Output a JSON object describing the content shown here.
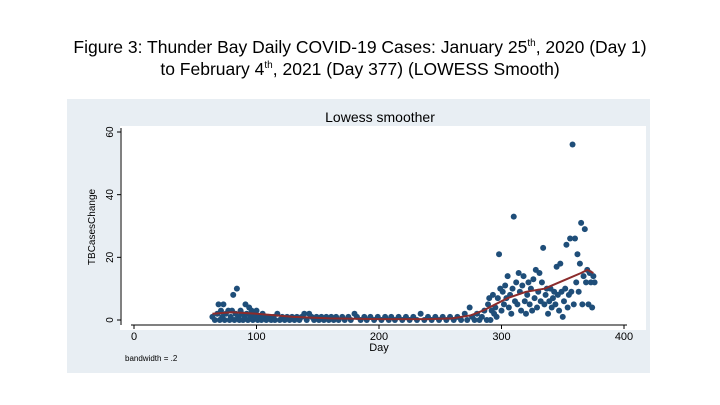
{
  "figure": {
    "line1_prefix": "Figure 3: Thunder Bay Daily COVID-19 Cases: January 25",
    "line1_sup": "th",
    "line1_suffix": ", 2020 (Day 1)",
    "line2_prefix": "to February 4",
    "line2_sup": "th",
    "line2_suffix": ", 2021 (Day 377) (LOWESS Smooth)"
  },
  "chart_data": {
    "type": "scatter",
    "title": "Lowess smoother",
    "xlabel": "Day",
    "ylabel": "TBCasesChange",
    "xlim": [
      0,
      400
    ],
    "ylim": [
      0,
      60
    ],
    "xticks": [
      0,
      100,
      200,
      300,
      400
    ],
    "yticks": [
      0,
      20,
      40,
      60
    ],
    "note": "bandwidth = .2",
    "series": [
      {
        "name": "TBCasesChange",
        "kind": "scatter",
        "color": "#1f4e79",
        "points": [
          [
            64,
            1
          ],
          [
            66,
            0
          ],
          [
            68,
            2
          ],
          [
            69,
            5
          ],
          [
            70,
            0
          ],
          [
            71,
            3
          ],
          [
            72,
            1
          ],
          [
            73,
            5
          ],
          [
            74,
            0
          ],
          [
            75,
            2
          ],
          [
            77,
            3
          ],
          [
            78,
            0
          ],
          [
            79,
            1
          ],
          [
            80,
            3
          ],
          [
            81,
            8
          ],
          [
            82,
            0
          ],
          [
            83,
            2
          ],
          [
            84,
            10
          ],
          [
            85,
            1
          ],
          [
            86,
            0
          ],
          [
            87,
            3
          ],
          [
            88,
            2
          ],
          [
            89,
            0
          ],
          [
            90,
            1
          ],
          [
            91,
            5
          ],
          [
            92,
            2
          ],
          [
            93,
            0
          ],
          [
            94,
            4
          ],
          [
            95,
            1
          ],
          [
            96,
            3
          ],
          [
            97,
            0
          ],
          [
            98,
            2
          ],
          [
            99,
            1
          ],
          [
            100,
            3
          ],
          [
            101,
            0
          ],
          [
            102,
            1
          ],
          [
            104,
            0
          ],
          [
            105,
            2
          ],
          [
            106,
            1
          ],
          [
            108,
            0
          ],
          [
            110,
            1
          ],
          [
            112,
            0
          ],
          [
            114,
            1
          ],
          [
            115,
            0
          ],
          [
            117,
            2
          ],
          [
            119,
            0
          ],
          [
            121,
            1
          ],
          [
            123,
            0
          ],
          [
            125,
            1
          ],
          [
            127,
            0
          ],
          [
            129,
            1
          ],
          [
            131,
            0
          ],
          [
            133,
            1
          ],
          [
            135,
            0
          ],
          [
            137,
            1
          ],
          [
            139,
            2
          ],
          [
            141,
            0
          ],
          [
            143,
            2
          ],
          [
            145,
            1
          ],
          [
            147,
            0
          ],
          [
            149,
            1
          ],
          [
            151,
            0
          ],
          [
            153,
            1
          ],
          [
            155,
            0
          ],
          [
            157,
            1
          ],
          [
            159,
            0
          ],
          [
            161,
            1
          ],
          [
            163,
            0
          ],
          [
            165,
            1
          ],
          [
            167,
            0
          ],
          [
            170,
            1
          ],
          [
            172,
            0
          ],
          [
            175,
            1
          ],
          [
            177,
            0
          ],
          [
            180,
            2
          ],
          [
            182,
            1
          ],
          [
            185,
            0
          ],
          [
            188,
            1
          ],
          [
            190,
            0
          ],
          [
            193,
            1
          ],
          [
            196,
            0
          ],
          [
            199,
            1
          ],
          [
            202,
            0
          ],
          [
            205,
            1
          ],
          [
            208,
            0
          ],
          [
            210,
            1
          ],
          [
            213,
            0
          ],
          [
            216,
            1
          ],
          [
            219,
            0
          ],
          [
            222,
            1
          ],
          [
            225,
            0
          ],
          [
            228,
            1
          ],
          [
            231,
            0
          ],
          [
            234,
            2
          ],
          [
            237,
            0
          ],
          [
            240,
            1
          ],
          [
            243,
            0
          ],
          [
            246,
            1
          ],
          [
            249,
            0
          ],
          [
            252,
            1
          ],
          [
            255,
            0
          ],
          [
            258,
            1
          ],
          [
            261,
            0
          ],
          [
            264,
            1
          ],
          [
            267,
            0
          ],
          [
            270,
            2
          ],
          [
            272,
            0
          ],
          [
            274,
            4
          ],
          [
            276,
            1
          ],
          [
            278,
            0
          ],
          [
            280,
            2
          ],
          [
            282,
            0
          ],
          [
            284,
            1
          ],
          [
            286,
            3
          ],
          [
            288,
            0
          ],
          [
            289,
            5
          ],
          [
            290,
            7
          ],
          [
            291,
            0
          ],
          [
            292,
            3
          ],
          [
            293,
            8
          ],
          [
            294,
            2
          ],
          [
            295,
            4
          ],
          [
            296,
            1
          ],
          [
            297,
            7
          ],
          [
            298,
            21
          ],
          [
            299,
            10
          ],
          [
            300,
            3
          ],
          [
            301,
            9
          ],
          [
            302,
            5
          ],
          [
            303,
            11
          ],
          [
            304,
            7
          ],
          [
            305,
            14
          ],
          [
            306,
            4
          ],
          [
            307,
            8
          ],
          [
            308,
            2
          ],
          [
            309,
            10
          ],
          [
            310,
            33
          ],
          [
            311,
            6
          ],
          [
            312,
            12
          ],
          [
            313,
            5
          ],
          [
            314,
            15
          ],
          [
            315,
            9
          ],
          [
            316,
            3
          ],
          [
            317,
            11
          ],
          [
            318,
            14
          ],
          [
            319,
            6
          ],
          [
            320,
            2
          ],
          [
            321,
            8
          ],
          [
            322,
            12
          ],
          [
            323,
            5
          ],
          [
            324,
            10
          ],
          [
            325,
            3
          ],
          [
            326,
            13
          ],
          [
            327,
            7
          ],
          [
            328,
            16
          ],
          [
            329,
            4
          ],
          [
            330,
            9
          ],
          [
            331,
            15
          ],
          [
            332,
            6
          ],
          [
            333,
            12
          ],
          [
            334,
            23
          ],
          [
            335,
            5
          ],
          [
            336,
            8
          ],
          [
            337,
            10
          ],
          [
            338,
            2
          ],
          [
            339,
            6
          ],
          [
            340,
            10
          ],
          [
            341,
            4
          ],
          [
            342,
            7
          ],
          [
            343,
            9
          ],
          [
            344,
            5
          ],
          [
            345,
            17
          ],
          [
            346,
            8
          ],
          [
            347,
            3
          ],
          [
            348,
            18
          ],
          [
            349,
            9
          ],
          [
            350,
            1
          ],
          [
            351,
            6
          ],
          [
            352,
            10
          ],
          [
            353,
            24
          ],
          [
            354,
            4
          ],
          [
            355,
            8
          ],
          [
            356,
            26
          ],
          [
            357,
            9
          ],
          [
            358,
            56
          ],
          [
            359,
            5
          ],
          [
            360,
            26
          ],
          [
            361,
            12
          ],
          [
            362,
            21
          ],
          [
            363,
            9
          ],
          [
            364,
            18
          ],
          [
            365,
            31
          ],
          [
            366,
            5
          ],
          [
            367,
            14
          ],
          [
            368,
            29
          ],
          [
            369,
            12
          ],
          [
            370,
            16
          ],
          [
            371,
            5
          ],
          [
            372,
            15
          ],
          [
            373,
            12
          ],
          [
            374,
            4
          ],
          [
            375,
            14
          ],
          [
            376,
            12
          ]
        ]
      },
      {
        "name": "Lowess smoother",
        "kind": "line",
        "color": "#8b2b2b",
        "x": [
          64,
          80,
          100,
          130,
          160,
          200,
          240,
          260,
          275,
          285,
          295,
          305,
          320,
          335,
          350,
          365,
          370,
          375
        ],
        "y": [
          2,
          2.5,
          2,
          1,
          0.5,
          0.3,
          0.3,
          0.5,
          1.5,
          3,
          5,
          7,
          9,
          10,
          12.5,
          15,
          16,
          15
        ]
      }
    ]
  }
}
